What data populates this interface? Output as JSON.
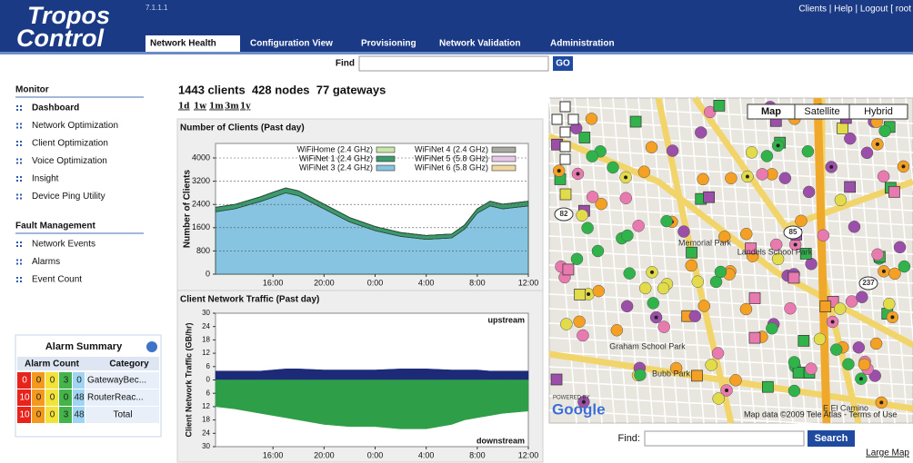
{
  "header": {
    "logo_line1": "Tropos",
    "logo_line2": "Control",
    "version": "7.1.1.1",
    "top_links": "Clients | Help | Logout [ root"
  },
  "tabs": [
    "Network Health",
    "Configuration View",
    "Provisioning",
    "Network Validation",
    "Administration"
  ],
  "find": {
    "label": "Find",
    "button": "GO"
  },
  "sidebar": [
    {
      "title": "Monitor",
      "items": [
        "Dashboard",
        "Network Optimization",
        "Client Optimization",
        "Voice Optimization",
        "Insight",
        "Device Ping Utility"
      ]
    },
    {
      "title": "Fault Management",
      "items": [
        "Network Events",
        "Alarms",
        "Event Count"
      ]
    }
  ],
  "alarm_summary": {
    "title": "Alarm Summary",
    "headers": [
      "Alarm Count",
      "Category"
    ],
    "rows": [
      {
        "counts": [
          0,
          0,
          0,
          3,
          0
        ],
        "category": "GatewayBec..."
      },
      {
        "counts": [
          10,
          0,
          0,
          0,
          48
        ],
        "category": "RouterReac..."
      },
      {
        "counts": [
          10,
          0,
          0,
          3,
          48
        ],
        "category": "Total"
      }
    ]
  },
  "summary": "1443 clients  428 nodes  77 gateways",
  "periods": [
    "1d",
    "1w",
    "1m",
    "3m",
    "1y"
  ],
  "chart_data": [
    {
      "type": "area",
      "title": "Number of Clients (Past day)",
      "y_label": "Number of Clients",
      "stacked": true,
      "grid": true,
      "x": [
        11.5,
        13,
        15,
        16,
        17,
        18,
        20,
        22,
        24,
        26,
        28,
        30,
        31,
        32,
        33,
        34,
        36
      ],
      "xlim": [
        11.5,
        36
      ],
      "xticks": [
        {
          "value": 16,
          "label": "16:00"
        },
        {
          "value": 20,
          "label": "20:00"
        },
        {
          "value": 24,
          "label": "0:00"
        },
        {
          "value": 28,
          "label": "4:00"
        },
        {
          "value": 32,
          "label": "8:00"
        },
        {
          "value": 36,
          "label": "12:00"
        }
      ],
      "ylim": [
        0,
        4500
      ],
      "yticks": [
        0,
        800,
        1600,
        2400,
        3200,
        4000
      ],
      "series": [
        {
          "name": "WiFiHome (2.4 GHz)",
          "color": "#c8e6a8",
          "values": [
            0,
            0,
            0,
            0,
            0,
            0,
            0,
            0,
            0,
            0,
            0,
            0,
            0,
            0,
            0,
            0,
            0
          ]
        },
        {
          "name": "WiFiNet 4 (2.4 GHz)",
          "color": "#a8a8a0",
          "values": [
            0,
            0,
            0,
            0,
            0,
            0,
            0,
            0,
            0,
            0,
            0,
            0,
            0,
            0,
            0,
            0,
            0
          ]
        },
        {
          "name": "WiFiNet 1 (2.4 GHz)",
          "color": "#3c9a6c",
          "values": [
            150,
            150,
            160,
            170,
            170,
            170,
            160,
            150,
            140,
            130,
            130,
            130,
            140,
            150,
            160,
            160,
            160
          ]
        },
        {
          "name": "WiFiNet 5 (5.8 GHz)",
          "color": "#e8c8e8",
          "values": [
            0,
            0,
            0,
            0,
            0,
            0,
            0,
            0,
            0,
            0,
            0,
            0,
            0,
            0,
            0,
            0,
            0
          ]
        },
        {
          "name": "WiFiNet 3 (2.4 GHz)",
          "color": "#86c4e2",
          "values": [
            2150,
            2250,
            2500,
            2650,
            2800,
            2700,
            2250,
            1800,
            1500,
            1300,
            1200,
            1250,
            1550,
            2100,
            2350,
            2250,
            2350
          ]
        },
        {
          "name": "WiFiNet 6 (5.8 GHz)",
          "color": "#f0d8a0",
          "values": [
            0,
            0,
            0,
            0,
            0,
            0,
            0,
            0,
            0,
            0,
            0,
            0,
            0,
            0,
            0,
            0,
            0
          ]
        }
      ]
    },
    {
      "type": "area",
      "title": "Client Network Traffic (Past day)",
      "y_label": "Client Network Traffic (GB/hr)",
      "stacked": false,
      "grid": false,
      "x": [
        11.5,
        13,
        15,
        16,
        17,
        18,
        20,
        22,
        24,
        26,
        28,
        30,
        31,
        32,
        33,
        34,
        36
      ],
      "xlim": [
        11.5,
        36
      ],
      "xticks": [
        {
          "value": 16,
          "label": "16:00"
        },
        {
          "value": 20,
          "label": "20:00"
        },
        {
          "value": 24,
          "label": "0:00"
        },
        {
          "value": 28,
          "label": "4:00"
        },
        {
          "value": 32,
          "label": "8:00"
        },
        {
          "value": 36,
          "label": "12:00"
        }
      ],
      "ylim": [
        -30,
        30
      ],
      "yticks": [
        30,
        24,
        18,
        12,
        6,
        0,
        {
          "value": -6,
          "label": "6"
        },
        {
          "value": -12,
          "label": "12"
        },
        {
          "value": -18,
          "label": "18"
        },
        {
          "value": -24,
          "label": "24"
        },
        {
          "value": -30,
          "label": "30"
        }
      ],
      "series": [
        {
          "name": "upstream",
          "color": "#1c2a78",
          "values": [
            4,
            4,
            4,
            4.5,
            5,
            5,
            4.5,
            4.5,
            4.5,
            5,
            5,
            4.5,
            4.5,
            4.5,
            4,
            4,
            4
          ]
        },
        {
          "name": "downstream",
          "color": "#2e9e48",
          "values": [
            -12,
            -13,
            -15,
            -16,
            -17,
            -18,
            -20,
            -21,
            -21,
            -22,
            -22,
            -20,
            -18,
            -17,
            -16,
            -15,
            -14
          ]
        }
      ]
    }
  ],
  "map": {
    "buttons": [
      "Map",
      "Satellite",
      "Hybrid"
    ],
    "labels": [
      "Landels School Park",
      "Graham School Park",
      "Bubb Park",
      "Memorial Park",
      "E El Camino",
      "85",
      "82",
      "237"
    ],
    "powered": "POWERED BY",
    "google": "Google",
    "attribution": "Map data ©2009 Tele Atlas - Terms of Use"
  },
  "map_search": {
    "label": "Find:",
    "button": "Search",
    "link": "Large Map"
  }
}
